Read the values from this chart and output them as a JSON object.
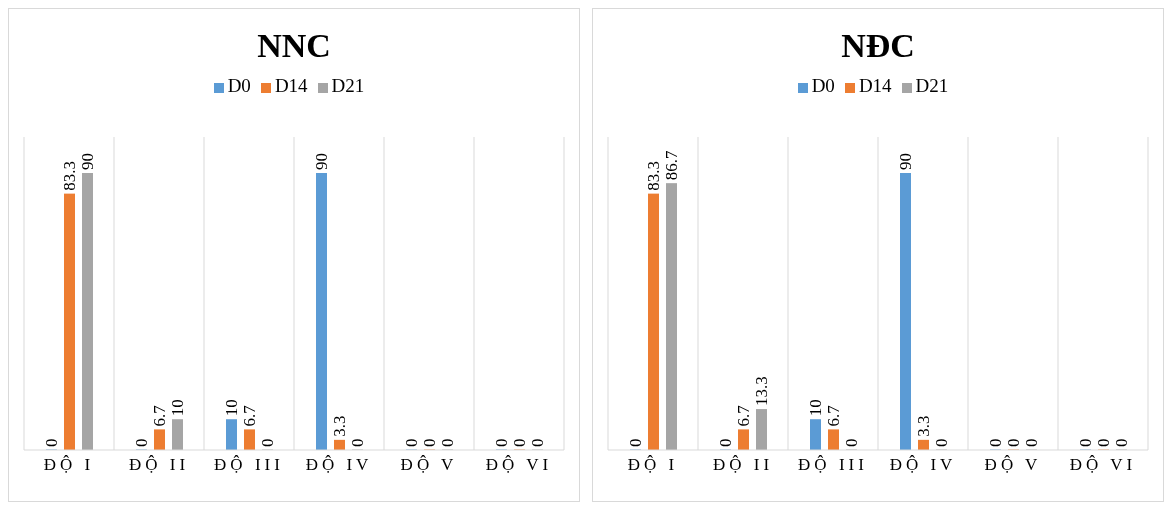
{
  "chart_data": [
    {
      "type": "bar",
      "title": "NNC",
      "categories": [
        "ĐỘ I",
        "ĐỘ II",
        "ĐỘ III",
        "ĐỘ IV",
        "ĐỘ V",
        "ĐỘ VI"
      ],
      "series": [
        {
          "name": "D0",
          "color": "#5b9bd5",
          "values": [
            0,
            0,
            10,
            90,
            0,
            0
          ]
        },
        {
          "name": "D14",
          "color": "#ed7d31",
          "values": [
            83.3,
            6.7,
            6.7,
            3.3,
            0,
            0
          ]
        },
        {
          "name": "D21",
          "color": "#a5a5a5",
          "values": [
            90,
            10,
            0,
            0,
            0,
            0
          ]
        }
      ],
      "data_labels": true,
      "legend": "top",
      "grid": "x"
    },
    {
      "type": "bar",
      "title": "NĐC",
      "categories": [
        "ĐỘ I",
        "ĐỘ II",
        "ĐỘ III",
        "ĐỘ IV",
        "ĐỘ V",
        "ĐỘ VI"
      ],
      "series": [
        {
          "name": "D0",
          "color": "#5b9bd5",
          "values": [
            0,
            0,
            10,
            90,
            0,
            0
          ]
        },
        {
          "name": "D14",
          "color": "#ed7d31",
          "values": [
            83.3,
            6.7,
            6.7,
            3.3,
            0,
            0
          ]
        },
        {
          "name": "D21",
          "color": "#a5a5a5",
          "values": [
            86.7,
            13.3,
            0,
            0,
            0,
            0
          ]
        }
      ],
      "data_labels": true,
      "legend": "top",
      "grid": "x"
    }
  ]
}
